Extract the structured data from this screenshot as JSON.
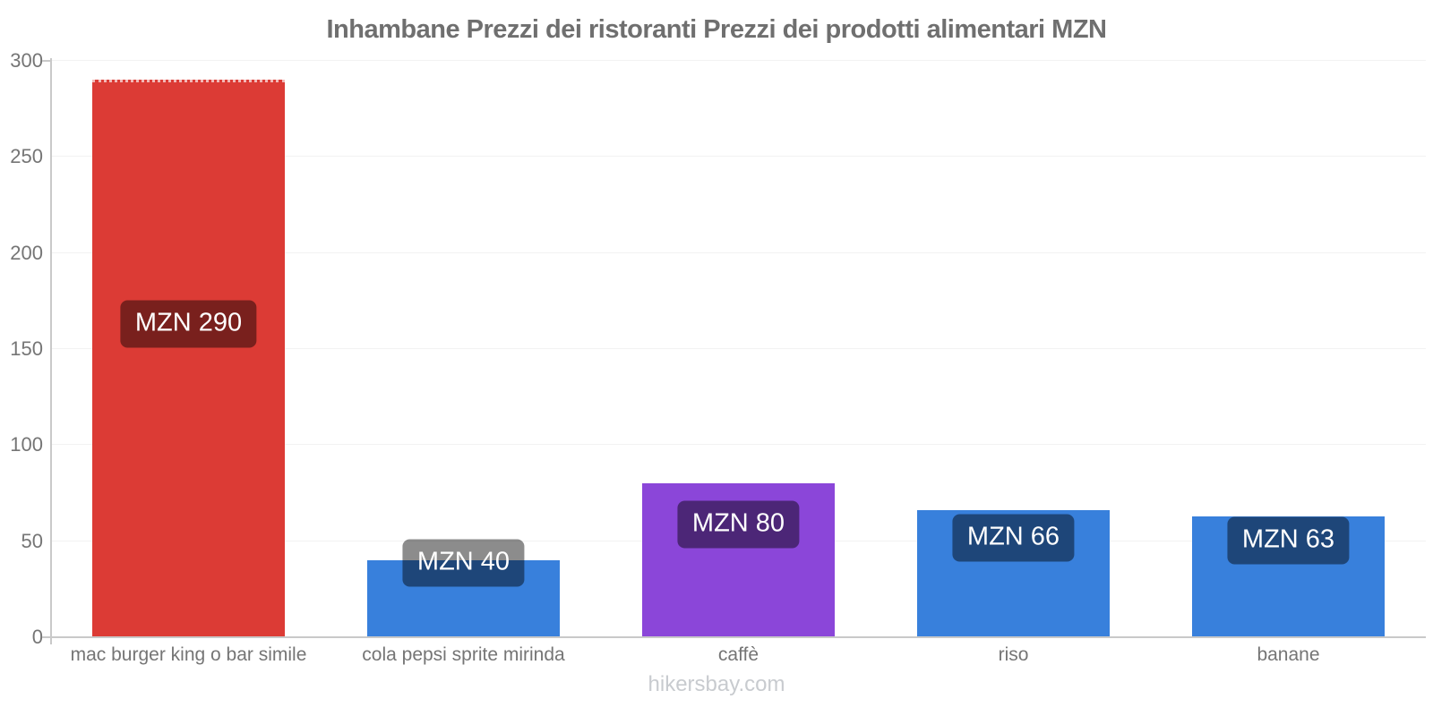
{
  "footer": "hikersbay.com",
  "chart_data": {
    "type": "bar",
    "title": "Inhambane Prezzi dei ristoranti Prezzi dei prodotti alimentari MZN",
    "categories": [
      "mac burger king o bar simile",
      "cola pepsi sprite mirinda",
      "caffè",
      "riso",
      "banane"
    ],
    "values": [
      290,
      40,
      80,
      66,
      63
    ],
    "value_labels": [
      "MZN 290",
      "MZN 40",
      "MZN 80",
      "MZN 66",
      "MZN 63"
    ],
    "currency": "MZN",
    "bar_colors": [
      "#dc3b35",
      "#3880dc",
      "#8b46d9",
      "#3880dc",
      "#3880dc"
    ],
    "value_label_overlay": "rgba(0,0,0,0.45)",
    "ylim": [
      0,
      300
    ],
    "yticks": [
      0,
      50,
      100,
      150,
      200,
      250,
      300
    ],
    "grid": true,
    "legend": false,
    "xlabel": "",
    "ylabel": "",
    "axis_color": "#c9c9c9",
    "grid_color": "#f2f2f2",
    "text_color": "#757575"
  }
}
